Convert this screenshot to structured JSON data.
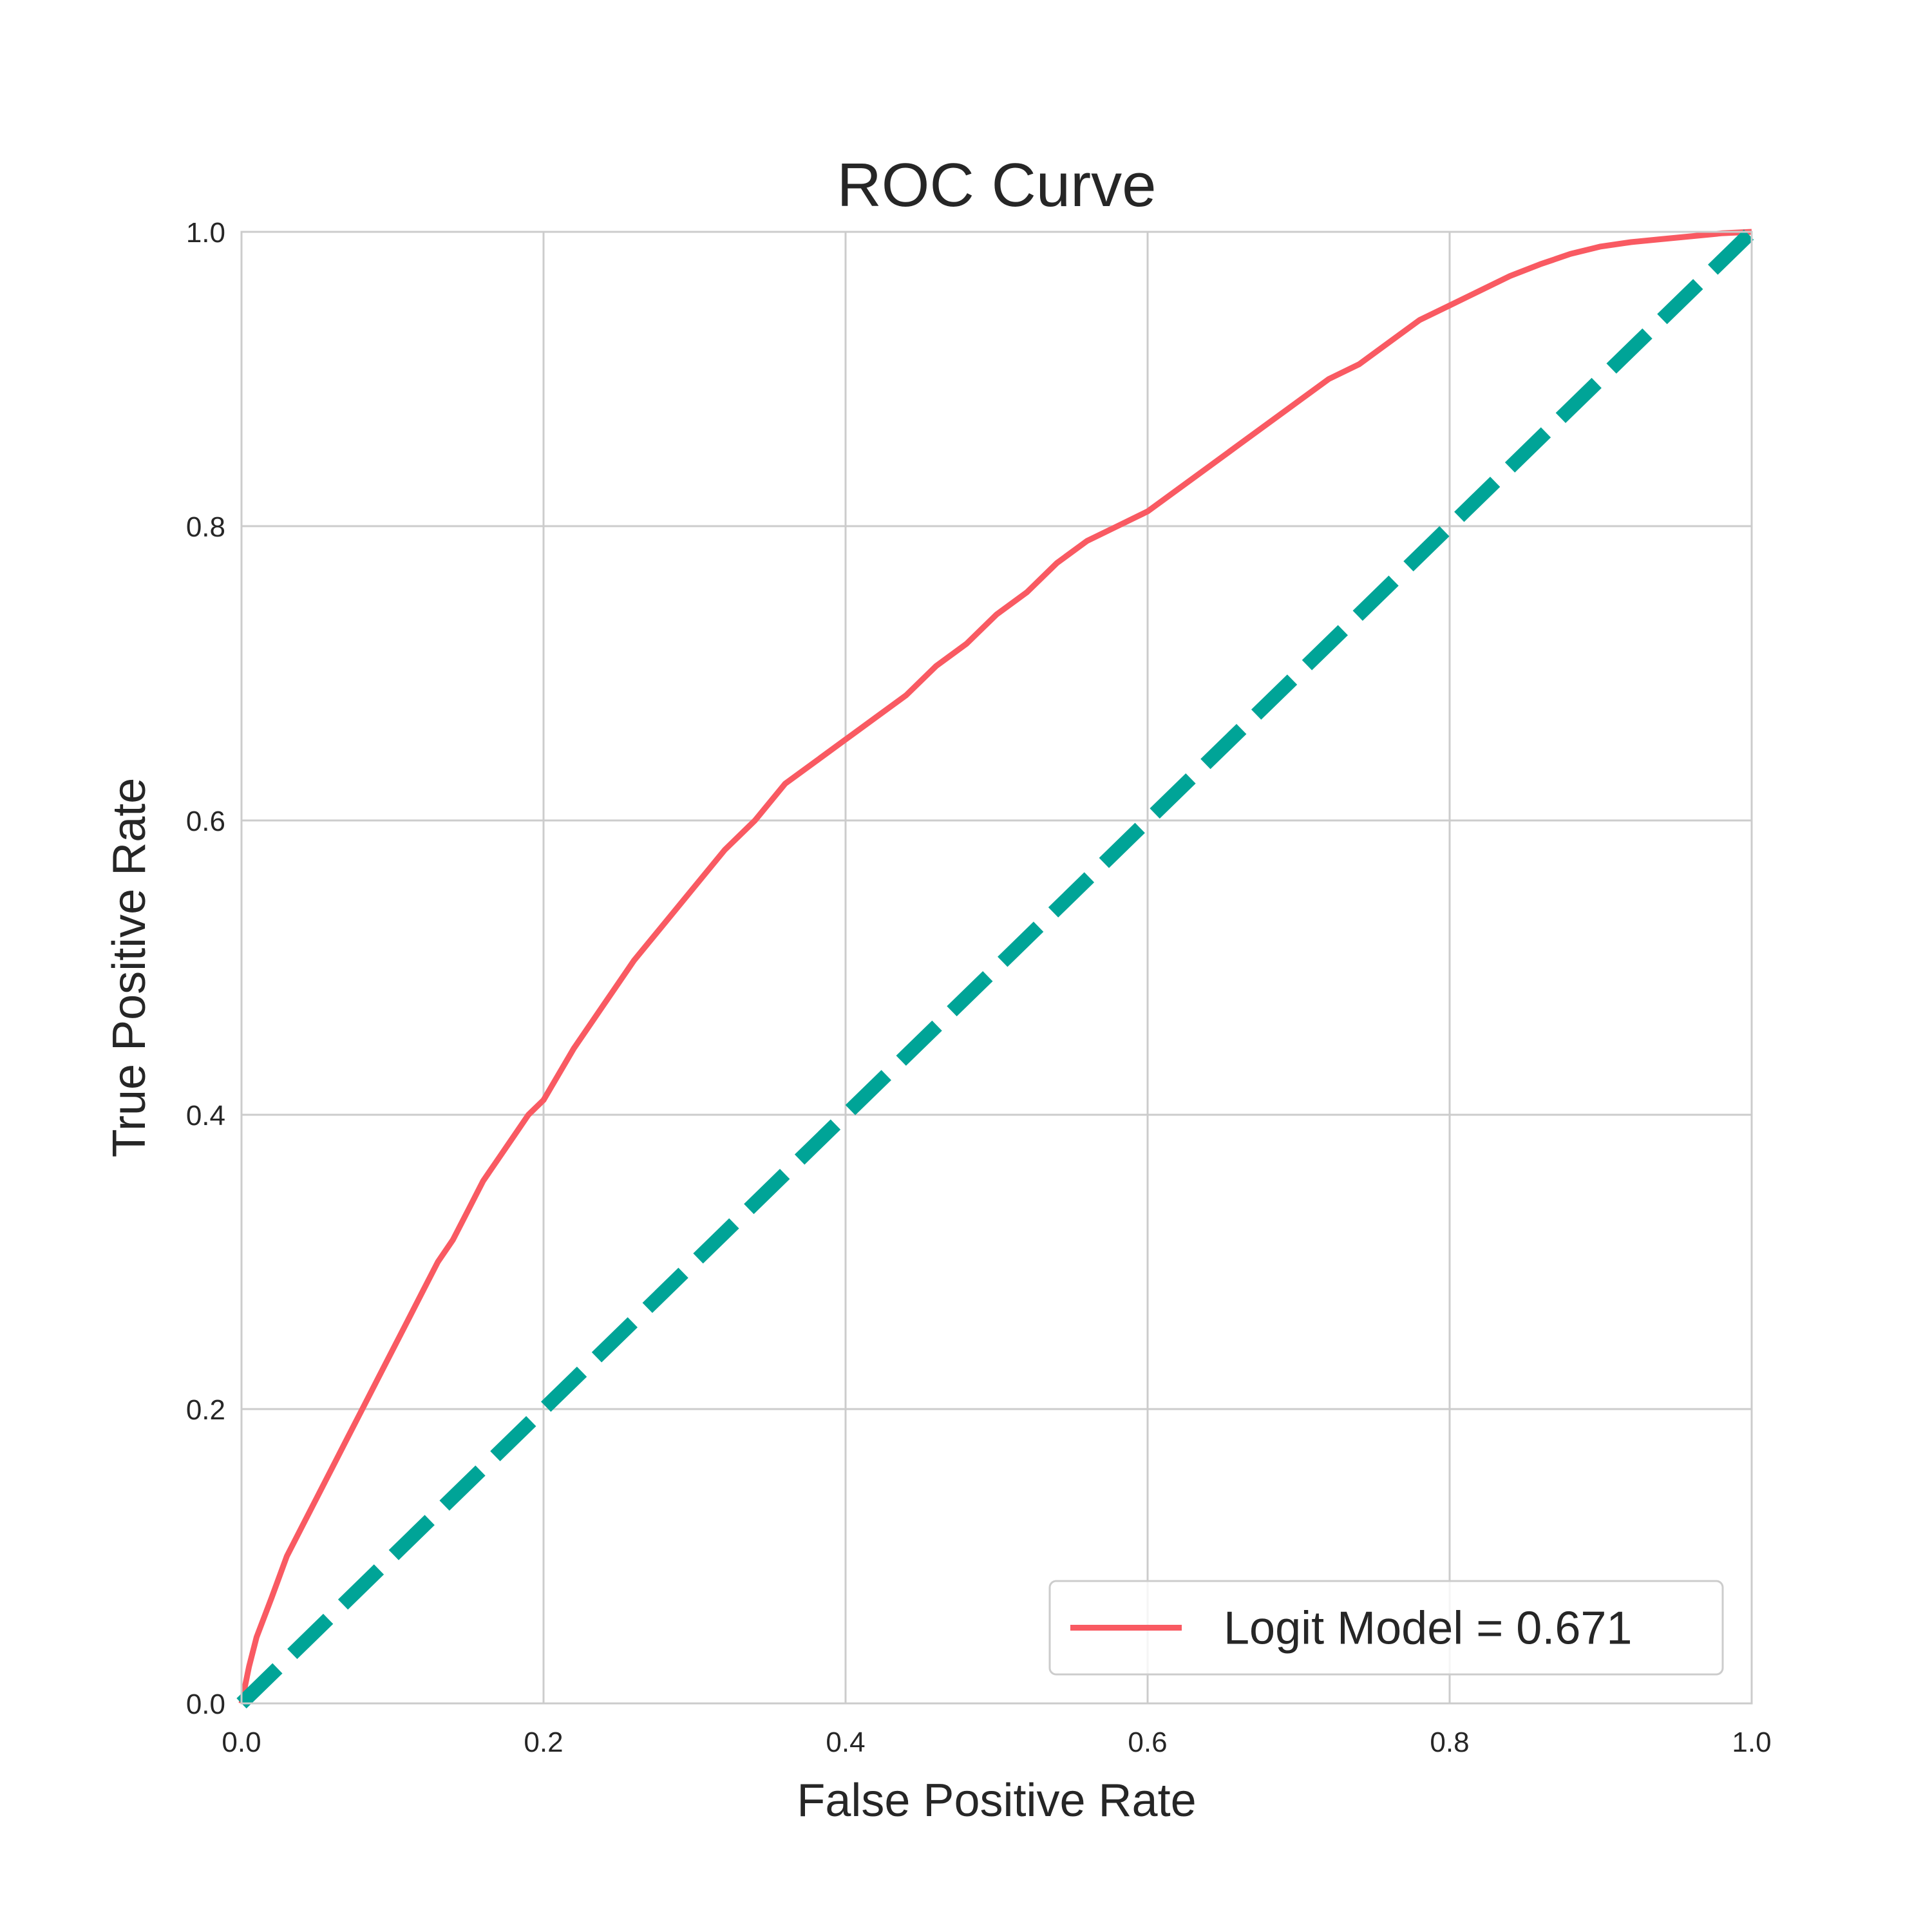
{
  "chart_data": {
    "type": "line",
    "title": "ROC Curve",
    "xlabel": "False Positive Rate",
    "ylabel": "True Positive Rate",
    "xlim": [
      0.0,
      1.0
    ],
    "ylim": [
      0.0,
      1.0
    ],
    "xticks": [
      "0.0",
      "0.2",
      "0.4",
      "0.6",
      "0.8",
      "1.0"
    ],
    "yticks": [
      "0.0",
      "0.2",
      "0.4",
      "0.6",
      "0.8",
      "1.0"
    ],
    "grid": true,
    "legend_position": "lower-right",
    "series": [
      {
        "name": "Logit Model = 0.671",
        "color": "#F95A62",
        "style": "solid",
        "x": [
          0.0,
          0.005,
          0.01,
          0.02,
          0.03,
          0.04,
          0.05,
          0.06,
          0.07,
          0.08,
          0.09,
          0.1,
          0.11,
          0.12,
          0.13,
          0.14,
          0.15,
          0.16,
          0.17,
          0.18,
          0.19,
          0.2,
          0.22,
          0.24,
          0.26,
          0.28,
          0.3,
          0.32,
          0.34,
          0.36,
          0.38,
          0.4,
          0.42,
          0.44,
          0.46,
          0.48,
          0.5,
          0.52,
          0.54,
          0.56,
          0.58,
          0.6,
          0.62,
          0.64,
          0.66,
          0.68,
          0.7,
          0.72,
          0.74,
          0.76,
          0.78,
          0.8,
          0.82,
          0.84,
          0.86,
          0.88,
          0.9,
          0.92,
          0.94,
          0.96,
          0.98,
          1.0
        ],
        "y": [
          0.0,
          0.025,
          0.045,
          0.072,
          0.1,
          0.12,
          0.14,
          0.16,
          0.18,
          0.2,
          0.22,
          0.24,
          0.26,
          0.28,
          0.3,
          0.315,
          0.335,
          0.355,
          0.37,
          0.385,
          0.4,
          0.41,
          0.445,
          0.475,
          0.505,
          0.53,
          0.555,
          0.58,
          0.6,
          0.625,
          0.64,
          0.655,
          0.67,
          0.685,
          0.705,
          0.72,
          0.74,
          0.755,
          0.775,
          0.79,
          0.8,
          0.81,
          0.825,
          0.84,
          0.855,
          0.87,
          0.885,
          0.9,
          0.91,
          0.925,
          0.94,
          0.95,
          0.96,
          0.97,
          0.978,
          0.985,
          0.99,
          0.993,
          0.995,
          0.997,
          0.999,
          1.0
        ]
      },
      {
        "color": "#00A497",
        "style": "dashed",
        "x": [
          0.0,
          1.0
        ],
        "y": [
          0.0,
          1.0
        ]
      }
    ]
  }
}
